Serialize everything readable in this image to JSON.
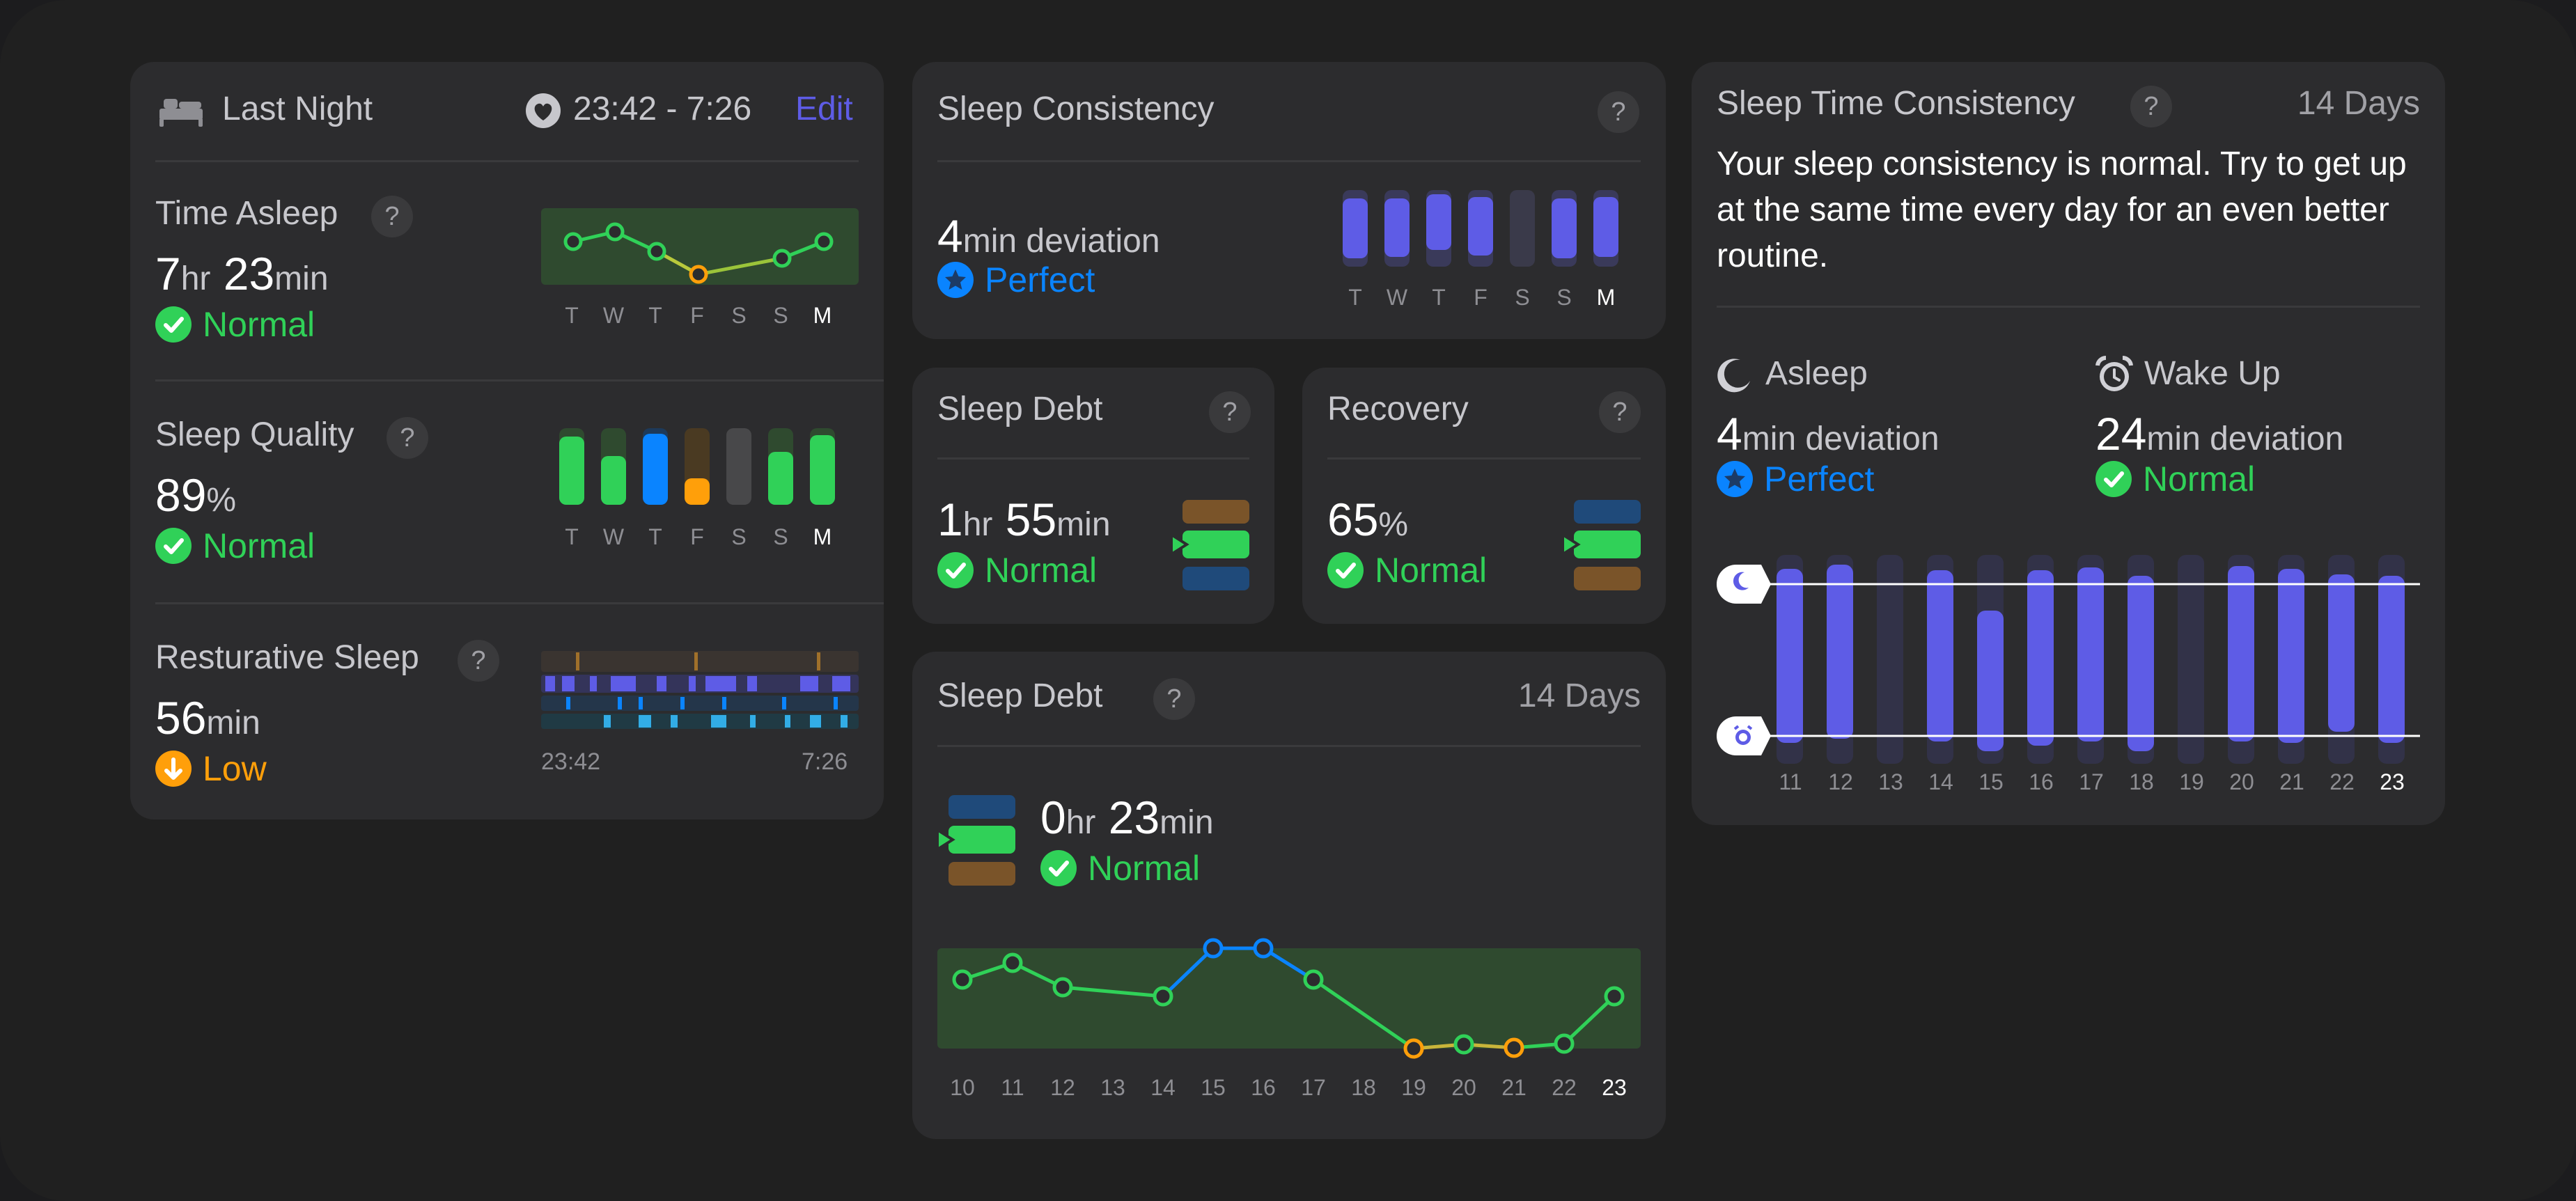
{
  "last_night": {
    "title": "Last Night",
    "time_range": "23:42 - 7:26",
    "edit_label": "Edit",
    "time_asleep": {
      "label": "Time Asleep",
      "hours": "7",
      "hr_unit": "hr",
      "minutes": "23",
      "min_unit": "min",
      "status": "Normal",
      "days": [
        "T",
        "W",
        "T",
        "F",
        "S",
        "S",
        "M"
      ]
    },
    "sleep_quality": {
      "label": "Sleep Quality",
      "value": "89",
      "unit": "%",
      "status": "Normal",
      "days": [
        "T",
        "W",
        "T",
        "F",
        "S",
        "S",
        "M"
      ]
    },
    "restorative_sleep": {
      "label": "Resturative Sleep",
      "value": "56",
      "unit": "min",
      "status": "Low",
      "start_time": "23:42",
      "end_time": "7:26"
    }
  },
  "sleep_consistency": {
    "title": "Sleep Consistency",
    "value": "4",
    "unit": "min deviation",
    "status": "Perfect",
    "days": [
      "T",
      "W",
      "T",
      "F",
      "S",
      "S",
      "M"
    ]
  },
  "sleep_debt": {
    "title": "Sleep Debt",
    "hours": "1",
    "hr_unit": "hr",
    "minutes": "55",
    "min_unit": "min",
    "status": "Normal"
  },
  "recovery": {
    "title": "Recovery",
    "value": "65",
    "unit": "%",
    "status": "Normal"
  },
  "sleep_debt_14": {
    "title": "Sleep Debt",
    "period": "14 Days",
    "hours": "0",
    "hr_unit": "hr",
    "minutes": "23",
    "min_unit": "min",
    "status": "Normal",
    "days": [
      "10",
      "11",
      "12",
      "13",
      "14",
      "15",
      "16",
      "17",
      "18",
      "19",
      "20",
      "21",
      "22",
      "23"
    ]
  },
  "sleep_time_consistency": {
    "title": "Sleep Time Consistency",
    "period": "14 Days",
    "description": "Your sleep consistency is normal. Try to get up at the same time every day for an even better routine.",
    "asleep": {
      "label": "Asleep",
      "value": "4",
      "unit": "min deviation",
      "status": "Perfect"
    },
    "wake_up": {
      "label": "Wake Up",
      "value": "24",
      "unit": "min deviation",
      "status": "Normal"
    },
    "days": [
      "11",
      "12",
      "13",
      "14",
      "15",
      "16",
      "17",
      "18",
      "19",
      "20",
      "21",
      "22",
      "23"
    ]
  },
  "icons": {
    "bed": "bed-icon",
    "heart": "heart-shield-icon",
    "help": "question-mark-icon",
    "check": "checkmark-circle-icon",
    "star": "star-circle-icon",
    "down": "arrow-down-circle-icon",
    "moon": "moon-icon",
    "alarm": "alarm-clock-icon"
  },
  "colors": {
    "green": "#30d158",
    "blue": "#0a84ff",
    "orange": "#ff9f0a",
    "purple": "#5e5ce6",
    "edit": "#5e5ce6"
  }
}
